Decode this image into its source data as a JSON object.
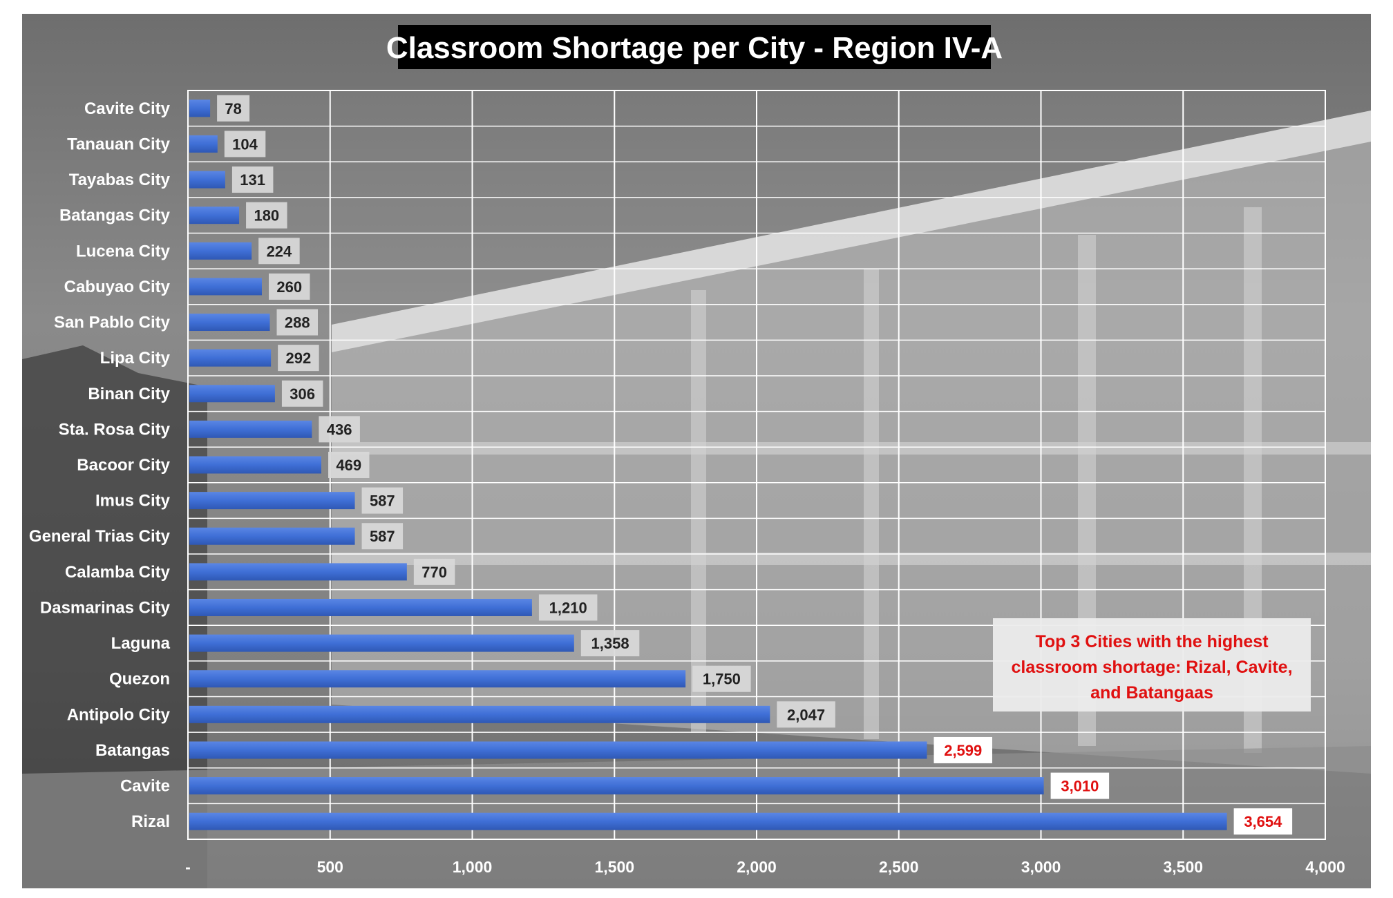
{
  "chart_data": {
    "type": "bar",
    "orientation": "horizontal",
    "title": "Classroom Shortage per City - Region IV-A",
    "xlabel": "",
    "ylabel": "",
    "xlim": [
      0,
      4000
    ],
    "xticks": [
      0,
      500,
      1000,
      1500,
      2000,
      2500,
      3000,
      3500,
      4000
    ],
    "xtick_labels": [
      "-",
      "500",
      "1,000",
      "1,500",
      "2,000",
      "2,500",
      "3,000",
      "3,500",
      "4,000"
    ],
    "grid": true,
    "categories": [
      "Cavite City",
      "Tanauan City",
      "Tayabas City",
      "Batangas City",
      "Lucena City",
      "Cabuyao City",
      "San Pablo City",
      "Lipa City",
      "Binan City",
      "Sta. Rosa City",
      "Bacoor City",
      "Imus City",
      "General Trias City",
      "Calamba City",
      "Dasmarinas City",
      "Laguna",
      "Quezon",
      "Antipolo City",
      "Batangas",
      "Cavite",
      "Rizal"
    ],
    "values": [
      78,
      104,
      131,
      180,
      224,
      260,
      288,
      292,
      306,
      436,
      469,
      587,
      587,
      770,
      1210,
      1358,
      1750,
      2047,
      2599,
      3010,
      3654
    ],
    "value_labels": [
      "78",
      "104",
      "131",
      "180",
      "224",
      "260",
      "288",
      "292",
      "306",
      "436",
      "469",
      "587",
      "587",
      "770",
      "1,210",
      "1,358",
      "1,750",
      "2,047",
      "2,599",
      "3,010",
      "3,654"
    ],
    "highlighted": [
      "Batangas",
      "Cavite",
      "Rizal"
    ],
    "annotation": "Top 3 Cities with the highest classroom shortage: Rizal, Cavite, and Batangaas",
    "colors": {
      "bar": "#3f6fd6",
      "label_box": "#d9d9d9",
      "label_text": "#222222",
      "highlight_box": "#ffffff",
      "highlight_text": "#e01010",
      "callout_text": "#e01010"
    }
  }
}
